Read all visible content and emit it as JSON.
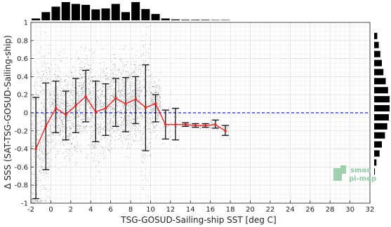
{
  "chart_data": {
    "type": "scatter",
    "title": "",
    "xlabel": "TSG-GOSUD-Sailing-ship SST [deg C]",
    "ylabel": "Δ SSS (SAT-TSG-GOSUD-Sailing-ship)",
    "xlim": [
      -2,
      32
    ],
    "ylim": [
      -1,
      1
    ],
    "x_ticks": [
      "-2",
      "0",
      "2",
      "4",
      "6",
      "8",
      "10",
      "12",
      "14",
      "16",
      "18",
      "20",
      "22",
      "24",
      "26",
      "28",
      "30",
      "32"
    ],
    "y_ticks": [
      "-1",
      "-0.8",
      "-0.6",
      "-0.4",
      "-0.2",
      "0",
      "0.2",
      "0.4",
      "0.6",
      "0.8",
      "1"
    ],
    "grid": true,
    "reference_line": 0,
    "reference_line_color": "#2222dd",
    "median_color": "#ee2222",
    "errorbar_color": "#111111",
    "scatter_color": "#8a8a8a",
    "binned_stats": [
      {
        "x": -1.5,
        "median": -0.4,
        "low": -0.95,
        "high": 0.17
      },
      {
        "x": -0.5,
        "median": -0.15,
        "low": -0.63,
        "high": 0.33
      },
      {
        "x": 0.5,
        "median": 0.05,
        "low": -0.22,
        "high": 0.35
      },
      {
        "x": 1.5,
        "median": -0.02,
        "low": -0.3,
        "high": 0.24
      },
      {
        "x": 2.5,
        "median": 0.08,
        "low": -0.22,
        "high": 0.38
      },
      {
        "x": 3.5,
        "median": 0.18,
        "low": -0.1,
        "high": 0.47
      },
      {
        "x": 4.5,
        "median": 0.01,
        "low": -0.32,
        "high": 0.35
      },
      {
        "x": 5.5,
        "median": 0.05,
        "low": -0.25,
        "high": 0.32
      },
      {
        "x": 6.5,
        "median": 0.16,
        "low": -0.15,
        "high": 0.38
      },
      {
        "x": 7.5,
        "median": 0.1,
        "low": -0.21,
        "high": 0.39
      },
      {
        "x": 8.5,
        "median": 0.15,
        "low": -0.12,
        "high": 0.4
      },
      {
        "x": 9.5,
        "median": 0.06,
        "low": -0.42,
        "high": 0.53
      },
      {
        "x": 10.5,
        "median": 0.1,
        "low": -0.1,
        "high": 0.2
      },
      {
        "x": 11.5,
        "median": -0.13,
        "low": -0.29,
        "high": 0.03
      },
      {
        "x": 12.5,
        "median": -0.13,
        "low": -0.3,
        "high": 0.05
      },
      {
        "x": 13.5,
        "median": -0.13,
        "low": -0.15,
        "high": -0.11
      },
      {
        "x": 14.5,
        "median": -0.14,
        "low": -0.16,
        "high": -0.12
      },
      {
        "x": 15.5,
        "median": -0.14,
        "low": -0.16,
        "high": -0.12
      },
      {
        "x": 16.5,
        "median": -0.13,
        "low": -0.17,
        "high": -0.08
      },
      {
        "x": 17.5,
        "median": -0.2,
        "low": -0.25,
        "high": -0.14
      }
    ],
    "x_histogram": {
      "bin_centers": [
        -1.5,
        -0.5,
        0.5,
        1.5,
        2.5,
        3.5,
        4.5,
        5.5,
        6.5,
        7.5,
        8.5,
        9.5,
        10.5,
        11.5,
        12.5,
        13.5,
        14.5,
        15.5,
        16.5,
        17.5
      ],
      "relative_counts": [
        0.1,
        0.45,
        0.75,
        1.0,
        0.9,
        0.85,
        0.6,
        0.65,
        0.9,
        0.45,
        1.0,
        0.62,
        0.35,
        0.1,
        0.05,
        0.03,
        0.03,
        0.03,
        0.02,
        0.02
      ]
    },
    "y_histogram": {
      "bin_centers": [
        0.85,
        0.75,
        0.65,
        0.55,
        0.45,
        0.35,
        0.25,
        0.15,
        0.05,
        -0.05,
        -0.15,
        -0.25,
        -0.35,
        -0.45,
        -0.55,
        -0.65
      ],
      "relative_counts": [
        0.2,
        0.3,
        0.4,
        0.5,
        0.6,
        0.75,
        0.9,
        1.0,
        1.0,
        0.95,
        0.85,
        0.7,
        0.5,
        0.35,
        0.15,
        0.05
      ]
    },
    "logo": {
      "line1": "smos",
      "line2": "pi-mep"
    }
  }
}
